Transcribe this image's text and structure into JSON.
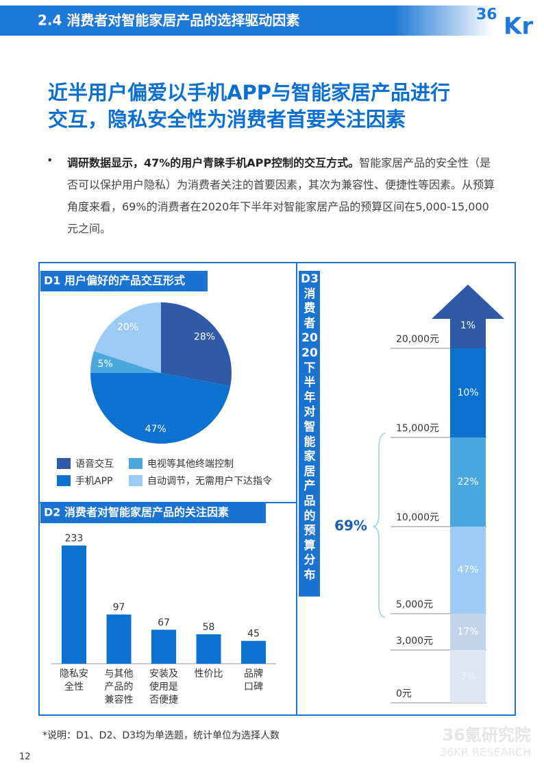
{
  "header": {
    "title": "2.4 消费者对智能家居产品的选择驱动因素",
    "logo_a": "36",
    "logo_b": "Kr"
  },
  "headline": [
    "近半用户偏爱以手机APP与智能家居产品进行",
    "交互，隐私安全性为消费者首要关注因素"
  ],
  "bullet": {
    "bold": "调研数据显示，47%的用户青睐手机APP控制的交互方式。",
    "text": "智能家居产品的安全性（是否可以保护用户隐私）为消费者关注的首要因素，其次为兼容性、便捷性等因素。从预算角度来看，69%的消费者在2020年下半年对智能家居产品的预算区间在5,000-15,000元之间。"
  },
  "chart_data": [
    {
      "type": "pie",
      "title": "D1 用户偏好的产品交互形式",
      "categories": [
        "语音交互",
        "手机APP",
        "电视等其他终端控制",
        "自动调节，无需用户下达指令"
      ],
      "values": [
        28,
        47,
        5,
        20
      ],
      "value_labels": [
        "28%",
        "47%",
        "5%",
        "20%"
      ],
      "colors": [
        "#2e5aa8",
        "#0b72d0",
        "#4aa8dc",
        "#9ccbf5"
      ]
    },
    {
      "type": "bar",
      "title": "D2 消费者对智能家居产品的关注因素",
      "categories": [
        "隐私安\n全性",
        "与其他\n产品的\n兼容性",
        "安装及\n使用是\n否便捷",
        "性价比",
        "品牌\n口碑"
      ],
      "values": [
        233,
        97,
        67,
        58,
        45
      ],
      "color": "#0b72d0"
    },
    {
      "type": "stacked-arrow",
      "title": "D3消费者2020下半年对智能家居产品的预算分布",
      "categories": [
        "0元",
        "3,000元",
        "5,000元",
        "10,000元",
        "15,000元",
        "20,000元"
      ],
      "values": [
        3,
        17,
        47,
        22,
        10,
        1
      ],
      "value_labels": [
        "3%",
        "17%",
        "47%",
        "22%",
        "10%",
        "1%"
      ],
      "colors": [
        "#dde6f2",
        "#c2d4ea",
        "#9ccbf5",
        "#4aa8dc",
        "#0b72d0",
        "#2e5aa8"
      ],
      "annotation": "69%"
    }
  ],
  "footnote": "*说明：D1、D2、D3均为单选题，统计单位为选择人数",
  "page_number": "12",
  "watermark": [
    "36氪研究院",
    "36KR RESEARCH"
  ]
}
